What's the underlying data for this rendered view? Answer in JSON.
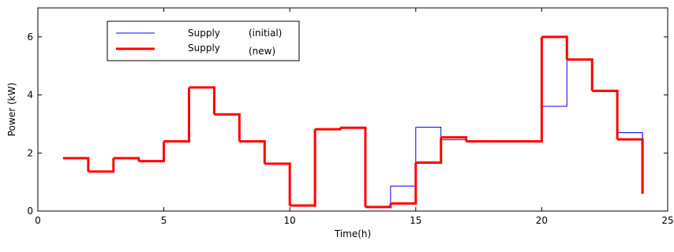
{
  "chart_data": {
    "type": "line",
    "step": true,
    "title": "",
    "xlabel": "Time(h)",
    "ylabel": "Power (kW)",
    "xlim": [
      0,
      25
    ],
    "ylim": [
      0,
      7
    ],
    "xticks": [
      0,
      5,
      10,
      15,
      20,
      25
    ],
    "yticks": [
      0,
      2,
      4,
      6
    ],
    "grid": false,
    "legend_position": "top-left",
    "series": [
      {
        "name": "Supply",
        "tag": "(initial)",
        "color": "#0000ff",
        "x": [
          1,
          2,
          3,
          4,
          5,
          6,
          7,
          8,
          9,
          10,
          11,
          12,
          13,
          14,
          15,
          16,
          17,
          18,
          19,
          20,
          21,
          22,
          23,
          24
        ],
        "values": [
          1.82,
          1.36,
          1.82,
          1.72,
          2.4,
          4.26,
          3.33,
          2.4,
          1.63,
          0.19,
          2.82,
          2.87,
          0.14,
          0.86,
          2.89,
          2.46,
          2.4,
          2.4,
          2.4,
          3.61,
          5.22,
          4.14,
          2.7,
          0.6
        ]
      },
      {
        "name": "Supply",
        "tag": "(new)",
        "color": "#ff0000",
        "x": [
          1,
          2,
          3,
          4,
          5,
          6,
          7,
          8,
          9,
          10,
          11,
          12,
          13,
          14,
          15,
          16,
          17,
          18,
          19,
          20,
          21,
          22,
          23,
          24
        ],
        "values": [
          1.82,
          1.36,
          1.82,
          1.72,
          2.4,
          4.26,
          3.33,
          2.4,
          1.63,
          0.19,
          2.82,
          2.87,
          0.14,
          0.26,
          1.67,
          2.54,
          2.4,
          2.4,
          2.4,
          6.0,
          5.22,
          4.14,
          2.47,
          0.6
        ]
      }
    ]
  }
}
